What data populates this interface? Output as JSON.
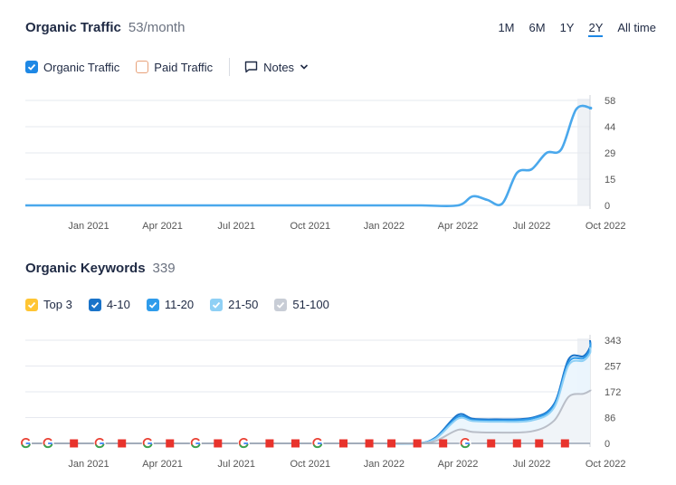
{
  "traffic": {
    "title": "Organic Traffic",
    "value": "53/month",
    "legend": {
      "organic": "Organic Traffic",
      "paid": "Paid Traffic",
      "notes": "Notes"
    }
  },
  "periods": [
    {
      "label": "1M",
      "active": false
    },
    {
      "label": "6M",
      "active": false
    },
    {
      "label": "1Y",
      "active": false
    },
    {
      "label": "2Y",
      "active": true
    },
    {
      "label": "All time",
      "active": false
    }
  ],
  "keywords": {
    "title": "Organic Keywords",
    "value": "339",
    "legend": [
      {
        "label": "Top 3",
        "color": "#ffc533"
      },
      {
        "label": "4-10",
        "color": "#1a73c9"
      },
      {
        "label": "11-20",
        "color": "#2f9ceb"
      },
      {
        "label": "21-50",
        "color": "#8fd0f5"
      },
      {
        "label": "51-100",
        "color": "#c8cdd6"
      }
    ]
  },
  "colors": {
    "traffic_line": "#4aa8ec",
    "grid": "#e6e9ef",
    "checkbox_blue": "#1e88e5",
    "google_marker": "google",
    "flag_marker": "#e8332c"
  },
  "chart_data": [
    {
      "type": "line",
      "title": "Organic Traffic",
      "x_labels": [
        "Jan 2021",
        "Apr 2021",
        "Jul 2021",
        "Oct 2021",
        "Jan 2022",
        "Apr 2022",
        "Jul 2022",
        "Oct 2022"
      ],
      "y_ticks": [
        "58",
        "44",
        "29",
        "15",
        "0"
      ],
      "ylim": [
        0,
        58
      ],
      "series": [
        {
          "name": "Organic Traffic",
          "x": [
            0,
            0.5,
            1,
            1.5,
            2,
            2.5,
            3,
            3.5,
            4,
            4.5,
            5,
            5.2,
            5.4,
            5.6,
            5.8,
            6,
            6.2,
            6.4,
            6.6,
            6.8,
            7
          ],
          "values": [
            0,
            0,
            0,
            0,
            0,
            0,
            0,
            0,
            0,
            0,
            0,
            5,
            3,
            1,
            18,
            20,
            29,
            31,
            53,
            54,
            53
          ]
        }
      ]
    },
    {
      "type": "area",
      "title": "Organic Keywords",
      "x_labels": [
        "Jan 2021",
        "Apr 2021",
        "Jul 2021",
        "Oct 2021",
        "Jan 2022",
        "Apr 2022",
        "Jul 2022",
        "Oct 2022"
      ],
      "y_ticks": [
        "343",
        "257",
        "172",
        "86",
        "0"
      ],
      "ylim": [
        0,
        343
      ],
      "x": [
        -0.85,
        0,
        1,
        2,
        3,
        4,
        4.45,
        4.7,
        5,
        5.2,
        5.5,
        6,
        6.3,
        6.5,
        6.7,
        6.9,
        7
      ],
      "series": [
        {
          "name": "4-10",
          "values": [
            0,
            0,
            0,
            0,
            0,
            0,
            0,
            20,
            95,
            82,
            80,
            85,
            130,
            280,
            290,
            320,
            343
          ]
        },
        {
          "name": "11-20",
          "values": [
            0,
            0,
            0,
            0,
            0,
            0,
            0,
            18,
            88,
            78,
            76,
            82,
            125,
            270,
            283,
            312,
            335
          ]
        },
        {
          "name": "21-50",
          "values": [
            0,
            0,
            0,
            0,
            0,
            0,
            0,
            16,
            82,
            74,
            72,
            76,
            118,
            260,
            275,
            300,
            320
          ]
        },
        {
          "name": "51-100",
          "values": [
            0,
            0,
            0,
            0,
            0,
            0,
            0,
            8,
            45,
            38,
            36,
            40,
            75,
            155,
            165,
            175,
            178
          ]
        }
      ],
      "markers": [
        {
          "x": -0.85,
          "kind": "google"
        },
        {
          "x": -0.55,
          "kind": "google"
        },
        {
          "x": -0.2,
          "kind": "flag"
        },
        {
          "x": 0.15,
          "kind": "google"
        },
        {
          "x": 0.45,
          "kind": "flag"
        },
        {
          "x": 0.8,
          "kind": "google"
        },
        {
          "x": 1.1,
          "kind": "flag"
        },
        {
          "x": 1.45,
          "kind": "google"
        },
        {
          "x": 1.75,
          "kind": "flag"
        },
        {
          "x": 2.1,
          "kind": "google"
        },
        {
          "x": 2.45,
          "kind": "flag"
        },
        {
          "x": 2.8,
          "kind": "flag"
        },
        {
          "x": 3.1,
          "kind": "google"
        },
        {
          "x": 3.45,
          "kind": "flag"
        },
        {
          "x": 3.8,
          "kind": "flag"
        },
        {
          "x": 4.1,
          "kind": "flag"
        },
        {
          "x": 4.45,
          "kind": "flag"
        },
        {
          "x": 4.8,
          "kind": "flag"
        },
        {
          "x": 5.1,
          "kind": "google"
        },
        {
          "x": 5.45,
          "kind": "flag"
        },
        {
          "x": 5.8,
          "kind": "flag"
        },
        {
          "x": 6.1,
          "kind": "flag"
        },
        {
          "x": 6.45,
          "kind": "flag"
        }
      ]
    }
  ]
}
